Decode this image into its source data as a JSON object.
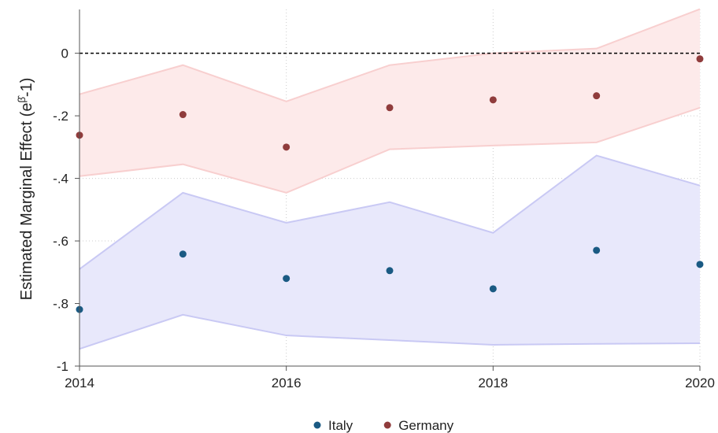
{
  "chart_data": {
    "type": "scatter-band",
    "y_label": {
      "prefix": "Estimated Marginal Effect (e",
      "superscript": "β̂",
      "suffix": "-1)"
    },
    "x": [
      2014,
      2015,
      2016,
      2017,
      2018,
      2019,
      2020
    ],
    "xlim": [
      2014,
      2020
    ],
    "xticks": [
      2014,
      2016,
      2018,
      2020
    ],
    "ylim": [
      -1,
      0.14
    ],
    "yticks": [
      {
        "value": 0,
        "label": "0"
      },
      {
        "value": -0.2,
        "label": "-.2"
      },
      {
        "value": -0.4,
        "label": "-.4"
      },
      {
        "value": -0.6,
        "label": "-.6"
      },
      {
        "value": -0.8,
        "label": "-.8"
      },
      {
        "value": -1,
        "label": "-1"
      }
    ],
    "grid": true,
    "reference_line": 0,
    "legend": "bottom",
    "series": [
      {
        "name": "Italy",
        "color": "#1a5a83",
        "band_color": "#e8e8fb",
        "band_edge": "#c9c9f4",
        "values": [
          -0.819,
          -0.642,
          -0.72,
          -0.695,
          -0.753,
          -0.63,
          -0.675
        ],
        "upper": [
          -0.69,
          -0.446,
          -0.542,
          -0.476,
          -0.574,
          -0.327,
          -0.423
        ],
        "lower": [
          -0.945,
          -0.836,
          -0.902,
          -0.917,
          -0.932,
          -0.929,
          -0.927
        ]
      },
      {
        "name": "Germany",
        "color": "#903c3c",
        "band_color": "#fdeaea",
        "band_edge": "#f8cfcf",
        "values": [
          -0.262,
          -0.196,
          -0.3,
          -0.174,
          -0.149,
          -0.136,
          -0.018
        ],
        "upper": [
          -0.131,
          -0.038,
          -0.154,
          -0.038,
          0.0,
          0.015,
          0.141
        ],
        "lower": [
          -0.393,
          -0.355,
          -0.446,
          -0.307,
          -0.295,
          -0.285,
          -0.174
        ]
      }
    ]
  }
}
